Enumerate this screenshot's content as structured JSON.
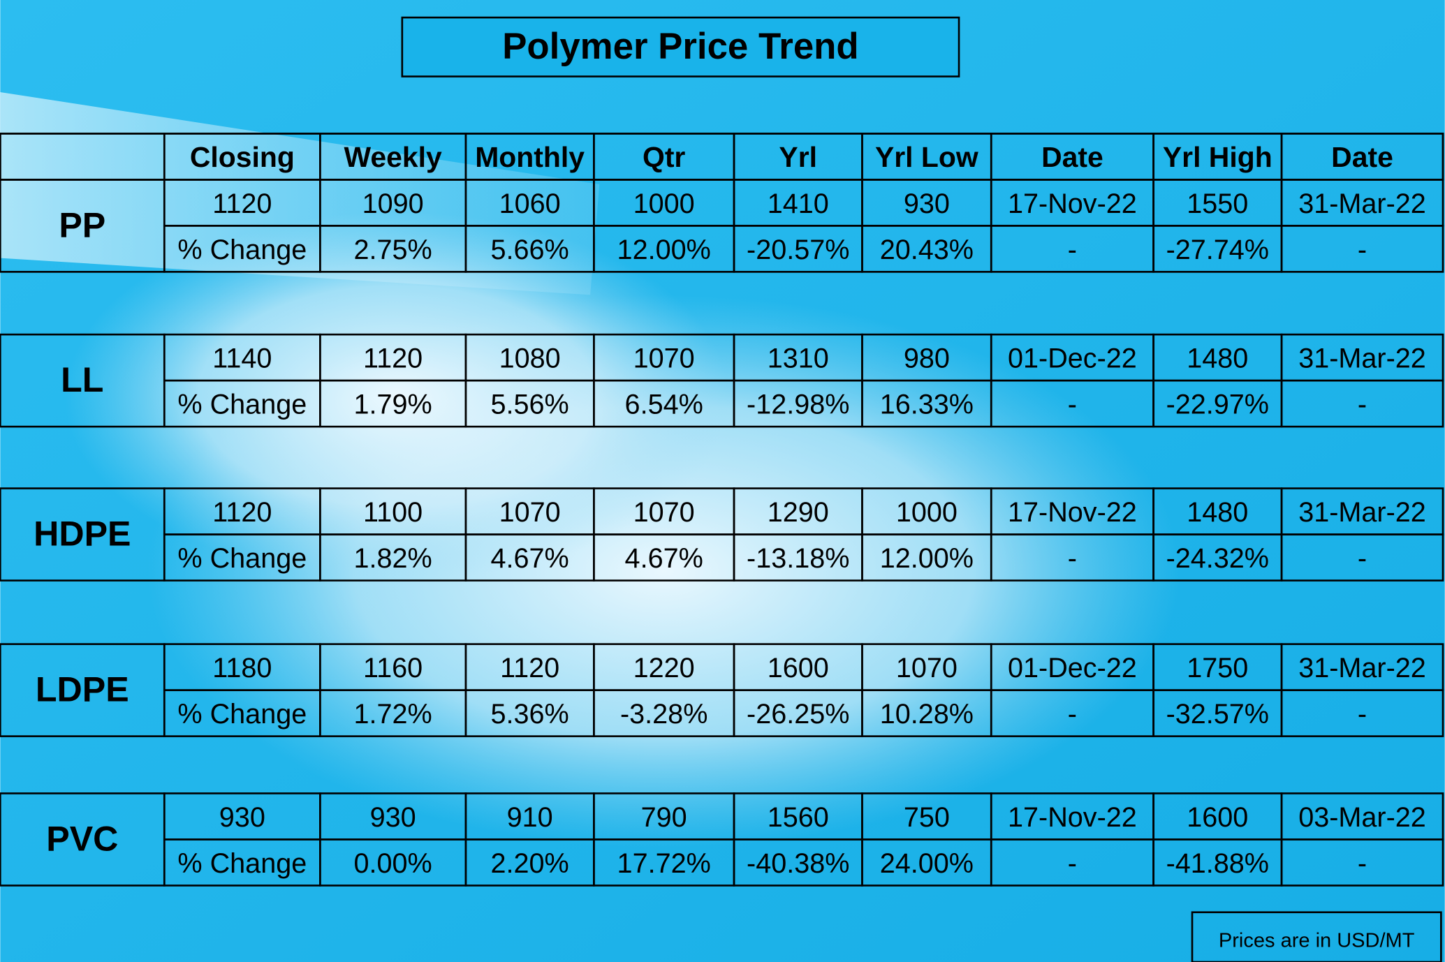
{
  "title": "Polymer Price Trend",
  "table": {
    "headers": [
      "Closing",
      "Weekly",
      "Monthly",
      "Qtr",
      "Yrl",
      "Yrl Low",
      "Date",
      "Yrl High",
      "Date"
    ],
    "groups": [
      {
        "name": "PP",
        "prices": [
          "1120",
          "1090",
          "1060",
          "1000",
          "1410",
          "930",
          "17-Nov-22",
          "1550",
          "31-Mar-22"
        ],
        "change": [
          "% Change",
          "2.75%",
          "5.66%",
          "12.00%",
          "-20.57%",
          "20.43%",
          "-",
          "-27.74%",
          "-"
        ]
      },
      {
        "name": "LL",
        "prices": [
          "1140",
          "1120",
          "1080",
          "1070",
          "1310",
          "980",
          "01-Dec-22",
          "1480",
          "31-Mar-22"
        ],
        "change": [
          "% Change",
          "1.79%",
          "5.56%",
          "6.54%",
          "-12.98%",
          "16.33%",
          "-",
          "-22.97%",
          "-"
        ]
      },
      {
        "name": "HDPE",
        "prices": [
          "1120",
          "1100",
          "1070",
          "1070",
          "1290",
          "1000",
          "17-Nov-22",
          "1480",
          "31-Mar-22"
        ],
        "change": [
          "% Change",
          "1.82%",
          "4.67%",
          "4.67%",
          "-13.18%",
          "12.00%",
          "-",
          "-24.32%",
          "-"
        ]
      },
      {
        "name": "LDPE",
        "prices": [
          "1180",
          "1160",
          "1120",
          "1220",
          "1600",
          "1070",
          "01-Dec-22",
          "1750",
          "31-Mar-22"
        ],
        "change": [
          "% Change",
          "1.72%",
          "5.36%",
          "-3.28%",
          "-26.25%",
          "10.28%",
          "-",
          "-32.57%",
          "-"
        ]
      },
      {
        "name": "PVC",
        "prices": [
          "930",
          "930",
          "910",
          "790",
          "1560",
          "750",
          "17-Nov-22",
          "1600",
          "03-Mar-22"
        ],
        "change": [
          "% Change",
          "0.00%",
          "2.20%",
          "17.72%",
          "-40.38%",
          "24.00%",
          "-",
          "-41.88%",
          "-"
        ]
      }
    ]
  },
  "note": "Prices are in USD/MT"
}
